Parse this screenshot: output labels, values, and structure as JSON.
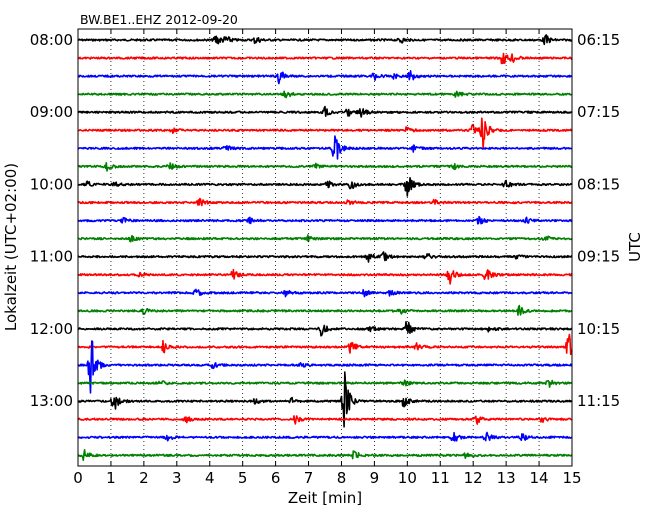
{
  "chart_data": {
    "type": "line",
    "title": "BW.BE1..EHZ 2012-09-20",
    "xlabel": "Zeit  [min]",
    "ylabel_left": "Lokalzeit (UTC+02:00)",
    "ylabel_right": "UTC",
    "xlim": [
      0,
      15
    ],
    "x_ticks": [
      0,
      1,
      2,
      3,
      4,
      5,
      6,
      7,
      8,
      9,
      10,
      11,
      12,
      13,
      14,
      15
    ],
    "x_tick_labels": [
      "0",
      "1",
      "2",
      "3",
      "4",
      "5",
      "6",
      "7",
      "8",
      "9",
      "10",
      "11",
      "12",
      "13",
      "14",
      "15"
    ],
    "grid": true,
    "trace_colors": [
      "#000000",
      "#ff0000",
      "#0000ff",
      "#008000"
    ],
    "left_tick_labels": [
      "08:00",
      "09:00",
      "10:00",
      "11:00",
      "12:00",
      "13:00"
    ],
    "right_tick_labels": [
      "06:15",
      "07:15",
      "08:15",
      "09:15",
      "10:15",
      "11:15"
    ],
    "tick_every_n_traces": 4,
    "traces": [
      {
        "start": "08:00",
        "events": [
          [
            4.2,
            6
          ],
          [
            4.5,
            4
          ],
          [
            5.4,
            4
          ],
          [
            9.8,
            3
          ],
          [
            14.2,
            5
          ]
        ]
      },
      {
        "start": "08:15",
        "events": [
          [
            12.9,
            7
          ],
          [
            13.2,
            4
          ]
        ]
      },
      {
        "start": "08:30",
        "events": [
          [
            6.1,
            8
          ],
          [
            9.0,
            4
          ],
          [
            9.6,
            3
          ],
          [
            10.1,
            5
          ]
        ]
      },
      {
        "start": "08:45",
        "events": [
          [
            6.3,
            5
          ],
          [
            11.5,
            3
          ]
        ]
      },
      {
        "start": "09:00",
        "events": [
          [
            7.5,
            5
          ],
          [
            8.2,
            4
          ],
          [
            8.6,
            5
          ]
        ]
      },
      {
        "start": "09:15",
        "events": [
          [
            2.9,
            3
          ],
          [
            12.3,
            17
          ],
          [
            12.0,
            7
          ],
          [
            10.0,
            4
          ]
        ]
      },
      {
        "start": "09:30",
        "events": [
          [
            7.8,
            19
          ],
          [
            4.5,
            3
          ],
          [
            10.2,
            3
          ]
        ]
      },
      {
        "start": "09:45",
        "events": [
          [
            0.9,
            4
          ],
          [
            2.8,
            3
          ],
          [
            7.2,
            3
          ],
          [
            11.4,
            3
          ]
        ]
      },
      {
        "start": "10:00",
        "events": [
          [
            0.3,
            3
          ],
          [
            1.1,
            3
          ],
          [
            7.6,
            4
          ],
          [
            8.3,
            5
          ],
          [
            10.0,
            12
          ],
          [
            13.0,
            5
          ]
        ]
      },
      {
        "start": "10:15",
        "events": [
          [
            3.7,
            5
          ],
          [
            8.2,
            4
          ],
          [
            10.8,
            3
          ]
        ]
      },
      {
        "start": "10:30",
        "events": [
          [
            1.4,
            3
          ],
          [
            5.2,
            3
          ],
          [
            12.2,
            5
          ],
          [
            13.6,
            3
          ]
        ]
      },
      {
        "start": "10:45",
        "events": [
          [
            1.6,
            3
          ],
          [
            7.0,
            3
          ],
          [
            14.2,
            3
          ]
        ]
      },
      {
        "start": "11:00",
        "events": [
          [
            8.8,
            6
          ],
          [
            9.3,
            4
          ],
          [
            10.6,
            4
          ],
          [
            13.3,
            3
          ]
        ]
      },
      {
        "start": "11:15",
        "events": [
          [
            4.7,
            7
          ],
          [
            11.3,
            9
          ],
          [
            12.4,
            8
          ],
          [
            1.9,
            3
          ]
        ]
      },
      {
        "start": "11:30",
        "events": [
          [
            3.6,
            4
          ],
          [
            6.3,
            3
          ],
          [
            8.7,
            3
          ],
          [
            9.5,
            3
          ]
        ]
      },
      {
        "start": "11:45",
        "events": [
          [
            2.0,
            3
          ],
          [
            13.4,
            5
          ],
          [
            9.8,
            3
          ]
        ]
      },
      {
        "start": "12:00",
        "events": [
          [
            7.4,
            7
          ],
          [
            10.0,
            9
          ],
          [
            8.9,
            4
          ],
          [
            12.5,
            4
          ]
        ]
      },
      {
        "start": "12:15",
        "events": [
          [
            2.6,
            6
          ],
          [
            8.3,
            8
          ],
          [
            10.3,
            4
          ],
          [
            14.9,
            14
          ]
        ]
      },
      {
        "start": "12:30",
        "events": [
          [
            0.4,
            34
          ],
          [
            4.1,
            3
          ],
          [
            6.8,
            3
          ]
        ]
      },
      {
        "start": "12:45",
        "events": [
          [
            2.5,
            3
          ],
          [
            14.3,
            4
          ],
          [
            9.9,
            3
          ]
        ]
      },
      {
        "start": "13:00",
        "events": [
          [
            1.1,
            10
          ],
          [
            8.1,
            30
          ],
          [
            9.9,
            6
          ],
          [
            5.4,
            3
          ],
          [
            6.5,
            3
          ]
        ]
      },
      {
        "start": "13:15",
        "events": [
          [
            6.6,
            4
          ],
          [
            12.1,
            5
          ],
          [
            14.1,
            3
          ],
          [
            3.3,
            3
          ]
        ]
      },
      {
        "start": "13:30",
        "events": [
          [
            2.7,
            4
          ],
          [
            11.4,
            6
          ],
          [
            12.4,
            6
          ],
          [
            13.5,
            4
          ]
        ]
      },
      {
        "start": "13:45",
        "events": [
          [
            0.2,
            6
          ],
          [
            8.4,
            5
          ],
          [
            11.8,
            3
          ]
        ]
      }
    ]
  }
}
